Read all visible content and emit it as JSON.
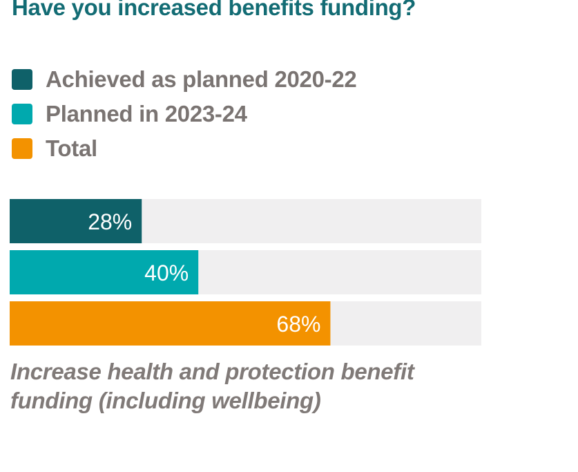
{
  "chart_data": {
    "type": "bar",
    "orientation": "horizontal",
    "title": "Have you increased benefits funding?",
    "categories": [
      "Achieved as planned 2020-22",
      "Planned in 2023-24",
      "Total"
    ],
    "values": [
      28,
      40,
      68
    ],
    "value_labels": [
      "28%",
      "40%",
      "68%"
    ],
    "colors": [
      "#0f6169",
      "#00a9ae",
      "#f39200"
    ],
    "track_color": "#f0eff0",
    "xlim": [
      0,
      100
    ],
    "legend": {
      "position": "top-left",
      "entries": [
        "Achieved as planned 2020-22",
        "Planned in 2023-24",
        "Total"
      ]
    },
    "caption": "Increase health and protection benefit funding (including wellbeing)",
    "grid": false
  }
}
